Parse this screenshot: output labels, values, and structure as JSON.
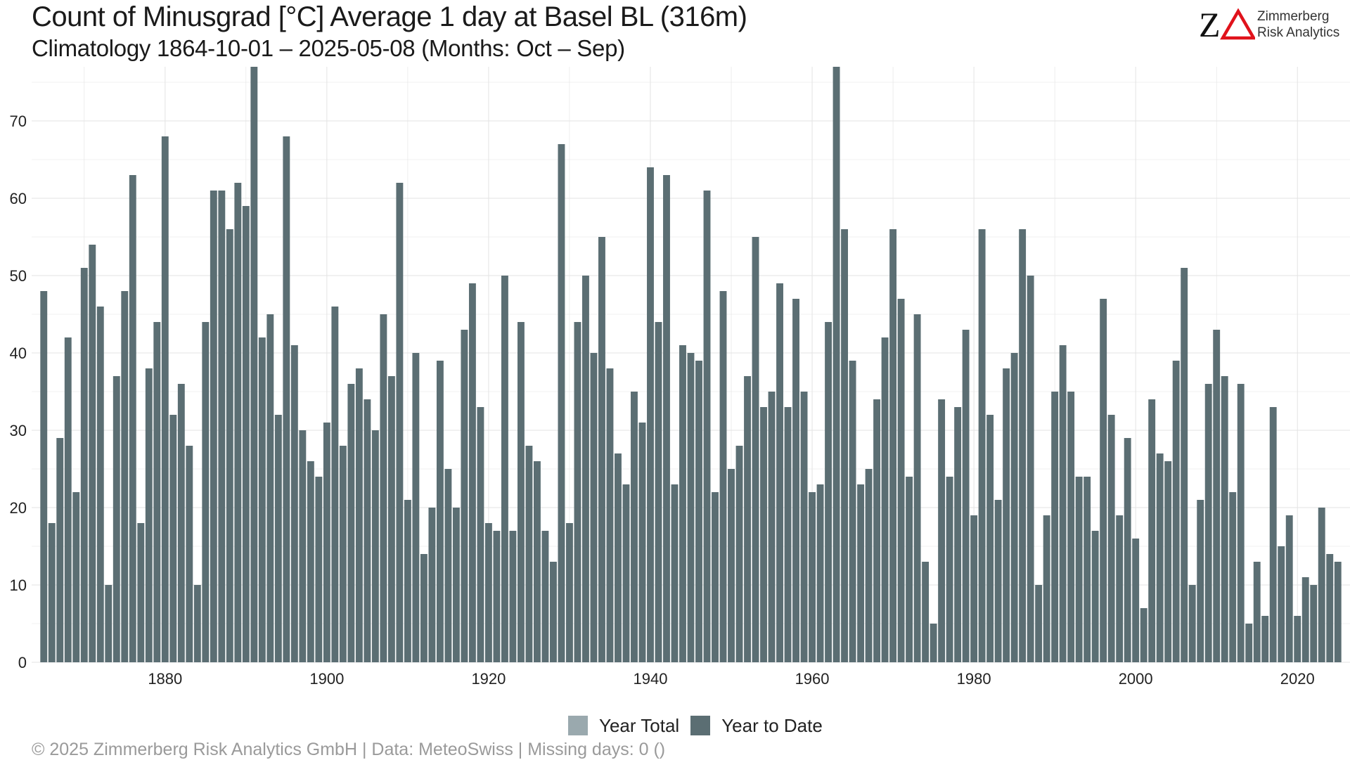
{
  "header": {
    "title": "Count of Minusgrad [°C] Average 1 day at Basel  BL (316m)",
    "subtitle": "Climatology 1864-10-01 – 2025-05-08 (Months: Oct – Sep)"
  },
  "logo": {
    "mark": "ZΔ",
    "line1": "Zimmerberg",
    "line2": "Risk Analytics",
    "colors": {
      "z": "#111111",
      "delta": "#e0121b"
    }
  },
  "footer": {
    "text": "©  2025 Zimmerberg Risk Analytics GmbH | Data: MeteoSwiss | Missing days: 0 ()"
  },
  "colors": {
    "year_to_date": "#5b6e73",
    "year_total": "#9aa9ae",
    "grid": "#e3e3e3",
    "background": "#ffffff"
  },
  "chart_data": {
    "type": "bar",
    "title": "Count of Minusgrad [°C] Average 1 day at Basel  BL (316m)",
    "subtitle": "Climatology 1864-10-01 – 2025-05-08 (Months: Oct – Sep)",
    "xlabel": "",
    "ylabel": "",
    "ylim": [
      0,
      77
    ],
    "xlim": [
      1863.5,
      2026.5
    ],
    "yticks": [
      0,
      10,
      20,
      30,
      40,
      50,
      60,
      70
    ],
    "xticks": [
      1880,
      1900,
      1920,
      1940,
      1960,
      1980,
      2000,
      2020
    ],
    "grid": true,
    "legend": {
      "position": "bottom",
      "entries": [
        "Year Total",
        "Year to Date"
      ]
    },
    "x_start": 1865,
    "series": [
      {
        "name": "Year to Date",
        "values": [
          48,
          18,
          29,
          42,
          22,
          51,
          54,
          46,
          10,
          37,
          48,
          63,
          18,
          38,
          44,
          68,
          32,
          36,
          28,
          10,
          44,
          61,
          61,
          56,
          62,
          59,
          77,
          42,
          45,
          32,
          68,
          41,
          30,
          26,
          24,
          31,
          46,
          28,
          36,
          38,
          34,
          30,
          45,
          37,
          62,
          21,
          40,
          14,
          20,
          39,
          25,
          20,
          43,
          49,
          33,
          18,
          17,
          50,
          17,
          44,
          28,
          26,
          17,
          13,
          67,
          18,
          44,
          50,
          40,
          55,
          38,
          27,
          23,
          35,
          31,
          64,
          44,
          63,
          23,
          41,
          40,
          39,
          61,
          22,
          48,
          25,
          28,
          37,
          55,
          33,
          35,
          49,
          33,
          47,
          35,
          22,
          23,
          44,
          77,
          56,
          39,
          23,
          25,
          34,
          42,
          56,
          47,
          24,
          45,
          13,
          5,
          34,
          24,
          33,
          43,
          19,
          56,
          32,
          21,
          38,
          40,
          56,
          50,
          10,
          19,
          35,
          41,
          35,
          24,
          24,
          17,
          47,
          32,
          19,
          29,
          16,
          7,
          34,
          27,
          26,
          39,
          51,
          10,
          21,
          36,
          43,
          37,
          22,
          36,
          5,
          13,
          6,
          33,
          15,
          19,
          6,
          11,
          10,
          20,
          14,
          13
        ]
      }
    ]
  }
}
